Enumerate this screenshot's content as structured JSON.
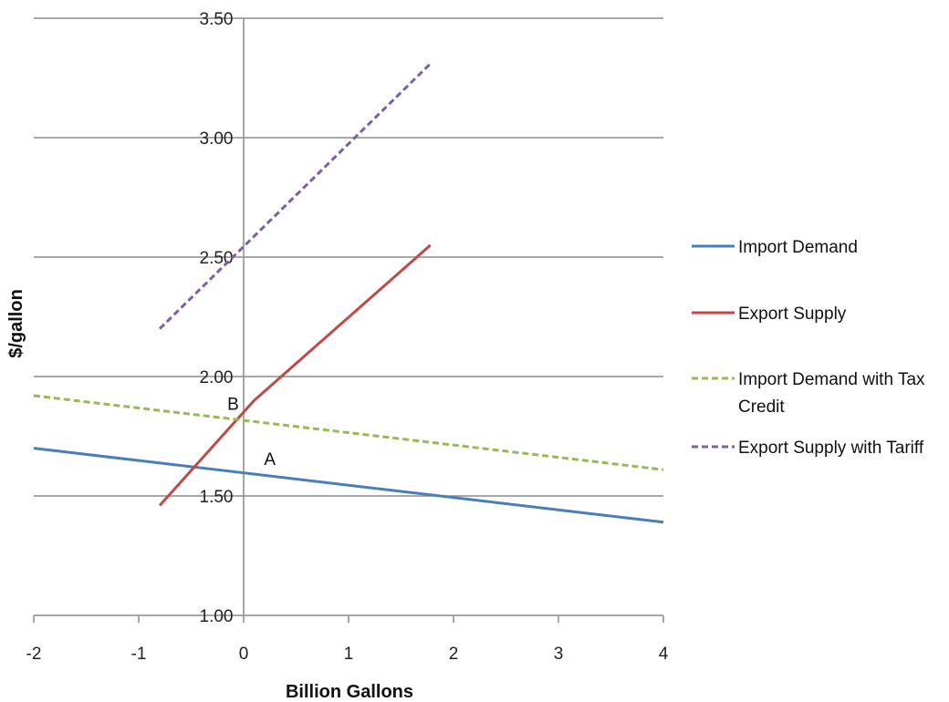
{
  "chart_data": {
    "type": "line",
    "title": "",
    "xlabel": "Billion Gallons",
    "ylabel": "$/gallon",
    "xlim": [
      -2,
      4
    ],
    "ylim": [
      1.0,
      3.5
    ],
    "x_ticks": [
      -2,
      -1,
      0,
      1,
      2,
      3,
      4
    ],
    "y_ticks": [
      1.0,
      1.5,
      2.0,
      2.5,
      3.0,
      3.5
    ],
    "x_tick_labels": [
      "-2",
      "-1",
      "0",
      "1",
      "2",
      "3",
      "4"
    ],
    "y_tick_labels": [
      "1.00",
      "1.50",
      "2.00",
      "2.50",
      "3.00",
      "3.50"
    ],
    "grid": "horizontal",
    "legend_position": "right",
    "series": [
      {
        "name": "Import Demand",
        "color": "#4a7ebb",
        "dash": "solid",
        "x": [
          -2,
          4
        ],
        "y": [
          1.7,
          1.39
        ]
      },
      {
        "name": "Export Supply",
        "color": "#be4b48",
        "dash": "solid",
        "x": [
          -0.8,
          0.1,
          1.78
        ],
        "y": [
          1.46,
          1.9,
          2.55
        ]
      },
      {
        "name": "Import Demand with Tax Credit",
        "color": "#98b954",
        "dash": "dashed",
        "x": [
          -2,
          4
        ],
        "y": [
          1.92,
          1.61
        ]
      },
      {
        "name": "Export Supply with Tariff",
        "color": "#7d60a0",
        "dash": "dashed",
        "x": [
          -0.8,
          1.78
        ],
        "y": [
          2.2,
          3.31
        ]
      }
    ],
    "annotations": [
      {
        "text": "A",
        "x": 0.25,
        "y": 1.63
      },
      {
        "text": "B",
        "x": -0.1,
        "y": 1.86
      }
    ]
  }
}
